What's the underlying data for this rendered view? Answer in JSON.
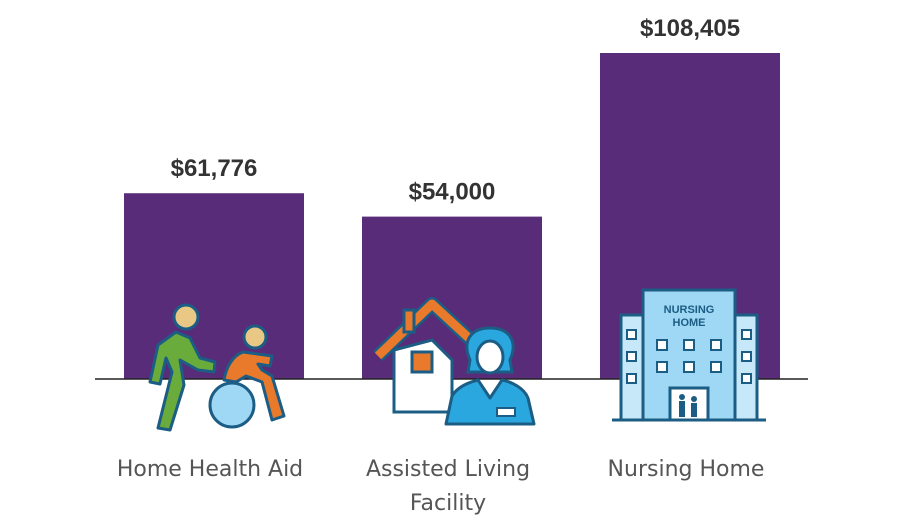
{
  "chart_data": {
    "type": "bar",
    "categories": [
      "Home Health Aid",
      "Assisted Living Facility",
      "Nursing Home"
    ],
    "category_lines": [
      [
        "Home Health Aid"
      ],
      [
        "Assisted Living",
        "Facility"
      ],
      [
        "Nursing Home"
      ]
    ],
    "values": [
      61776,
      54000,
      108405
    ],
    "value_labels": [
      "$61,776",
      "$54,000",
      "$108,405"
    ],
    "title": "",
    "xlabel": "",
    "ylabel": "",
    "ylim": [
      0,
      108405
    ],
    "grid": false,
    "legend": "none",
    "colors": {
      "bar": "#582c78",
      "baseline": "#222222",
      "value_text": "#333333",
      "category_text": "#555555"
    }
  },
  "icons": {
    "home_health_aid": "caregiver-wheelchair-icon",
    "assisted_living": "house-caregiver-icon",
    "nursing_home": "nursing-home-building-icon",
    "building_sign": "NURSING HOME",
    "icon_colors": {
      "green": "#6aac3c",
      "orange": "#e9792b",
      "skin": "#e9c886",
      "blue": "#2aa7df",
      "light_blue": "#9fd8f4",
      "navy": "#1c5d85",
      "sky": "#c6e8f8"
    }
  }
}
